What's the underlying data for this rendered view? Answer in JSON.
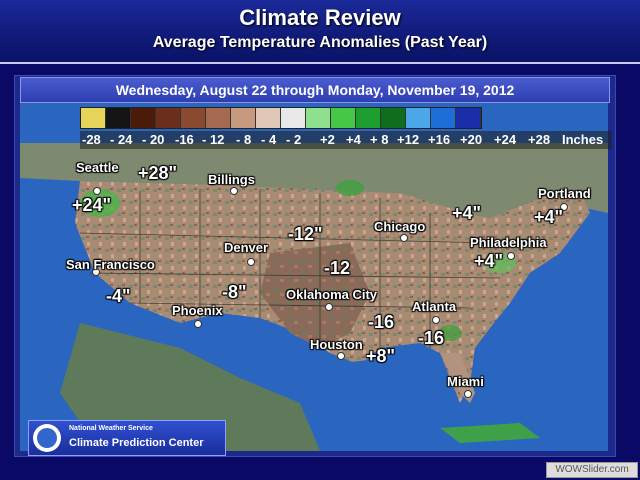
{
  "header": {
    "title": "Climate Review",
    "subtitle": "Average Temperature Anomalies (Past Year)"
  },
  "date_range": "Wednesday, August 22 through Monday, November 19, 2012",
  "legend": {
    "labels": [
      "-28",
      "- 24",
      "- 20",
      "-16",
      "- 12",
      "- 8",
      "- 4",
      "- 2",
      "+2",
      "+4",
      "+ 8",
      "+12",
      "+16",
      "+20",
      "+24",
      "+28",
      "Inches"
    ],
    "colors": [
      "#e6d45a",
      "#141414",
      "#4a1a0a",
      "#6b2e1a",
      "#8a4a30",
      "#a66a50",
      "#c79a80",
      "#e0c8b8",
      "#e8e8e8",
      "#8ee08e",
      "#46c846",
      "#1e9e2e",
      "#0e6e1e",
      "#4aa8e8",
      "#1e6ed8",
      "#1a2ea8"
    ]
  },
  "cities": [
    {
      "name": "Seattle"
    },
    {
      "name": "Billings"
    },
    {
      "name": "Portland"
    },
    {
      "name": "Chicago"
    },
    {
      "name": "Denver"
    },
    {
      "name": "Philadelphia"
    },
    {
      "name": "San Francisco"
    },
    {
      "name": "Oklahoma City"
    },
    {
      "name": "Atlanta"
    },
    {
      "name": "Phoenix"
    },
    {
      "name": "Houston"
    },
    {
      "name": "Miami"
    }
  ],
  "anomalies": [
    "+28\"",
    "+24\"",
    "-12\"",
    "-12",
    "+4\"",
    "+4\"",
    "+4\"",
    "-4\"",
    "-8\"",
    "-16",
    "-16",
    "+8\""
  ],
  "footer": {
    "org_top": "National Weather Service",
    "org_bottom": "Climate Prediction Center",
    "watermark": "WOWSlider.com"
  }
}
